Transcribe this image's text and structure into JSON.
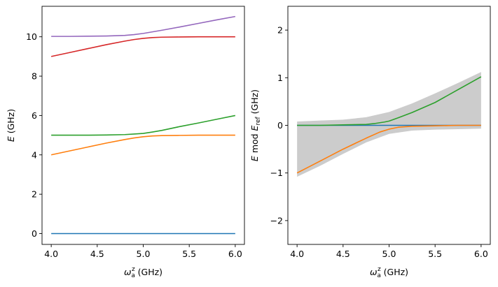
{
  "chart_data": [
    {
      "type": "line",
      "xlabel": "ω_a^z (GHz)",
      "ylabel": "E (GHz)",
      "xlim": [
        3.9,
        6.1
      ],
      "ylim": [
        -0.55,
        11.55
      ],
      "xticks": [
        4.0,
        4.5,
        5.0,
        5.5,
        6.0
      ],
      "xticklabels": [
        "4.0",
        "4.5",
        "5.0",
        "5.5",
        "6.0"
      ],
      "yticks": [
        0,
        2,
        4,
        6,
        8,
        10
      ],
      "yticklabels": [
        "0",
        "2",
        "4",
        "6",
        "8",
        "10"
      ],
      "series": [
        {
          "color": "#1f77b4",
          "x": [
            4.0,
            4.5,
            5.0,
            5.5,
            6.0
          ],
          "y": [
            0.0,
            0.0,
            0.0,
            0.0,
            0.0
          ]
        },
        {
          "color": "#ff7f0e",
          "x": [
            4.0,
            4.2,
            4.4,
            4.6,
            4.8,
            4.9,
            5.0,
            5.1,
            5.2,
            5.4,
            5.6,
            5.8,
            6.0
          ],
          "y": [
            4.0,
            4.2,
            4.4,
            4.6,
            4.78,
            4.86,
            4.92,
            4.96,
            4.98,
            4.99,
            5.0,
            5.0,
            5.0
          ]
        },
        {
          "color": "#2ca02c",
          "x": [
            4.0,
            4.2,
            4.4,
            4.6,
            4.8,
            4.9,
            5.0,
            5.1,
            5.2,
            5.4,
            5.6,
            5.8,
            6.0
          ],
          "y": [
            5.0,
            5.0,
            5.0,
            5.01,
            5.03,
            5.06,
            5.09,
            5.16,
            5.24,
            5.44,
            5.62,
            5.81,
            6.0
          ]
        },
        {
          "color": "#d62728",
          "x": [
            4.0,
            4.2,
            4.4,
            4.6,
            4.8,
            4.9,
            5.0,
            5.1,
            5.2,
            5.4,
            5.6,
            5.8,
            6.0
          ],
          "y": [
            9.0,
            9.2,
            9.4,
            9.6,
            9.78,
            9.86,
            9.92,
            9.96,
            9.98,
            9.99,
            10.0,
            10.0,
            10.0
          ]
        },
        {
          "color": "#9467bd",
          "x": [
            4.0,
            4.2,
            4.4,
            4.6,
            4.8,
            4.9,
            5.0,
            5.1,
            5.2,
            5.4,
            5.6,
            5.8,
            6.0
          ],
          "y": [
            10.02,
            10.02,
            10.03,
            10.04,
            10.07,
            10.11,
            10.17,
            10.25,
            10.33,
            10.5,
            10.68,
            10.86,
            11.03
          ]
        }
      ]
    },
    {
      "type": "line",
      "xlabel": "ω_a^z (GHz)",
      "ylabel": "E mod E_ref (GHz)",
      "xlim": [
        3.9,
        6.1
      ],
      "ylim": [
        -2.5,
        2.5
      ],
      "xticks": [
        4.0,
        4.5,
        5.0,
        5.5,
        6.0
      ],
      "xticklabels": [
        "4.0",
        "4.5",
        "5.0",
        "5.5",
        "6.0"
      ],
      "yticks": [
        -2,
        -1,
        0,
        1,
        2
      ],
      "yticklabels": [
        "−2",
        "−1",
        "0",
        "1",
        "2"
      ],
      "band": {
        "color": "#cccccc",
        "x": [
          4.0,
          4.25,
          4.5,
          4.75,
          5.0,
          5.25,
          5.5,
          5.75,
          6.0
        ],
        "upper": [
          0.08,
          0.1,
          0.12,
          0.17,
          0.28,
          0.46,
          0.67,
          0.89,
          1.12
        ],
        "lower": [
          -1.08,
          -0.85,
          -0.6,
          -0.36,
          -0.18,
          -0.11,
          -0.09,
          -0.08,
          -0.07
        ]
      },
      "series": [
        {
          "color": "#1f77b4",
          "x": [
            4.0,
            4.5,
            5.0,
            5.5,
            6.0
          ],
          "y": [
            0.0,
            0.0,
            0.0,
            0.0,
            0.0
          ]
        },
        {
          "color": "#2ca02c",
          "x": [
            4.0,
            4.25,
            4.5,
            4.75,
            4.85,
            4.95,
            5.0,
            5.1,
            5.25,
            5.5,
            5.75,
            6.0
          ],
          "y": [
            0.0,
            0.0,
            0.01,
            0.02,
            0.04,
            0.07,
            0.09,
            0.16,
            0.27,
            0.48,
            0.75,
            1.02
          ]
        },
        {
          "color": "#ff7f0e",
          "x": [
            4.0,
            4.25,
            4.5,
            4.75,
            4.9,
            5.0,
            5.1,
            5.25,
            5.5,
            5.75,
            6.0
          ],
          "y": [
            -1.0,
            -0.75,
            -0.5,
            -0.27,
            -0.14,
            -0.08,
            -0.04,
            -0.02,
            -0.01,
            0.0,
            0.0
          ]
        }
      ]
    }
  ]
}
